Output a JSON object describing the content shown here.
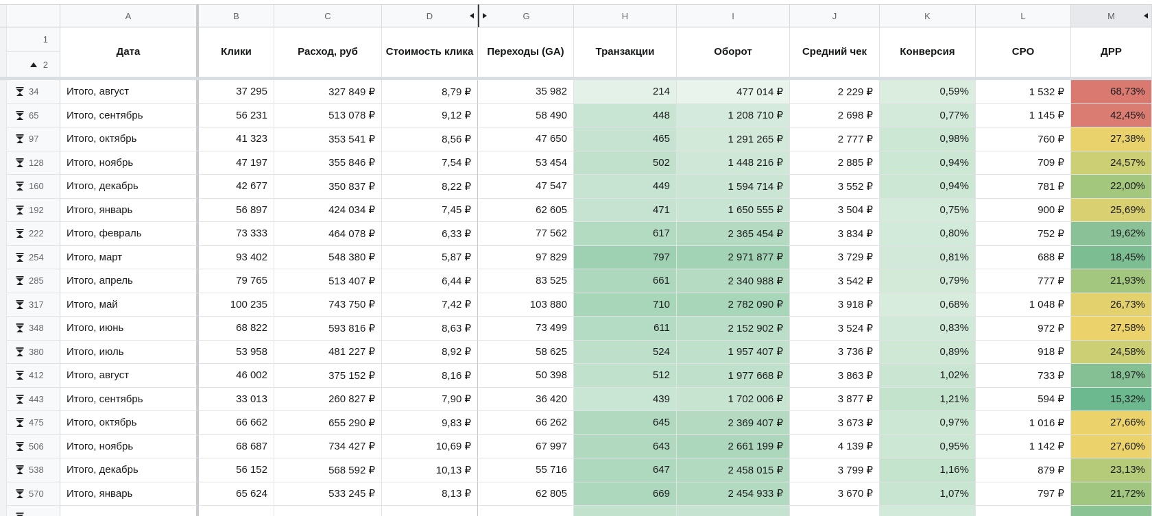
{
  "icons": {
    "row_group_collapsed": "double-triangle-collapse-icon",
    "hidden_columns_marker": "black-triangle-icon",
    "frozen_group_toggle": "up-triangle-icon"
  },
  "palette": {
    "header_bg": "#f8f9fa",
    "selected_header_bg": "#e7e9ec",
    "gridline": "#e1e2e3",
    "frozen_divider": "#c8ccd0",
    "red_scale": "#d9796f",
    "yellow_scale": "#ebd26b",
    "green_scale": "#6cb88f"
  },
  "frozen_row_numbers": [
    "1",
    "2"
  ],
  "columns": [
    {
      "letter": "A",
      "title": "Дата"
    },
    {
      "letter": "B",
      "title": "Клики"
    },
    {
      "letter": "C",
      "title": "Расход, руб"
    },
    {
      "letter": "D",
      "title": "Стоимость клика",
      "hidden_after": true
    },
    {
      "letter": "G",
      "title": "Переходы (GA)",
      "hidden_before": true
    },
    {
      "letter": "H",
      "title": "Транзакции"
    },
    {
      "letter": "I",
      "title": "Оборот"
    },
    {
      "letter": "J",
      "title": "Средний чек"
    },
    {
      "letter": "K",
      "title": "Конверсия"
    },
    {
      "letter": "L",
      "title": "CPO"
    },
    {
      "letter": "M",
      "title": "ДРР",
      "hidden_after": true,
      "selected": true
    }
  ],
  "rows": [
    {
      "num": "34",
      "a": "Итого, август",
      "b": "37 295",
      "c": "327 849 ₽",
      "d": "8,79 ₽",
      "g": "35 982",
      "h": "214",
      "i": "477 014 ₽",
      "j": "2 229 ₽",
      "k": "0,59%",
      "l": "1 532 ₽",
      "m": "68,73%",
      "bg": {
        "h": "#e4f1e8",
        "i": "#e9f4ec",
        "k": "#daeddf",
        "m": "#d9796f"
      }
    },
    {
      "num": "65",
      "a": "Итого, сентябрь",
      "b": "56 231",
      "c": "513 078 ₽",
      "d": "9,12 ₽",
      "g": "58 490",
      "h": "448",
      "i": "1 208 710 ₽",
      "j": "2 698 ₽",
      "k": "0,77%",
      "l": "1 145 ₽",
      "m": "42,45%",
      "bg": {
        "h": "#c8e4d2",
        "i": "#d4eadc",
        "k": "#d3eada",
        "m": "#da7c72"
      }
    },
    {
      "num": "97",
      "a": "Итого, октябрь",
      "b": "41 323",
      "c": "353 541 ₽",
      "d": "8,56 ₽",
      "g": "47 650",
      "h": "465",
      "i": "1 291 265 ₽",
      "j": "2 777 ₽",
      "k": "0,98%",
      "l": "760 ₽",
      "m": "27,38%",
      "bg": {
        "h": "#c5e3d0",
        "i": "#d2e9da",
        "k": "#cce7d4",
        "m": "#e9d26c"
      }
    },
    {
      "num": "128",
      "a": "Итого, ноябрь",
      "b": "47 197",
      "c": "355 846 ₽",
      "d": "7,54 ₽",
      "g": "53 454",
      "h": "502",
      "i": "1 448 216 ₽",
      "j": "2 885 ₽",
      "k": "0,94%",
      "l": "709 ₽",
      "m": "24,57%",
      "bg": {
        "h": "#c1e1cd",
        "i": "#cee7d7",
        "k": "#cde7d5",
        "m": "#cdcf74"
      }
    },
    {
      "num": "160",
      "a": "Итого, декабрь",
      "b": "42 677",
      "c": "350 837 ₽",
      "d": "8,22 ₽",
      "g": "47 547",
      "h": "449",
      "i": "1 594 714 ₽",
      "j": "3 552 ₽",
      "k": "0,94%",
      "l": "781 ₽",
      "m": "22,00%",
      "bg": {
        "h": "#c7e4d2",
        "i": "#cae5d3",
        "k": "#cde7d5",
        "m": "#a4c77e"
      }
    },
    {
      "num": "192",
      "a": "Итого, январь",
      "b": "56 897",
      "c": "424 034 ₽",
      "d": "7,45 ₽",
      "g": "62 605",
      "h": "471",
      "i": "1 650 555 ₽",
      "j": "3 504 ₽",
      "k": "0,75%",
      "l": "900 ₽",
      "m": "25,69%",
      "bg": {
        "h": "#c5e3d0",
        "i": "#c8e4d2",
        "k": "#d4eada",
        "m": "#d9d071"
      }
    },
    {
      "num": "222",
      "a": "Итого, февраль",
      "b": "73 333",
      "c": "464 078 ₽",
      "d": "6,33 ₽",
      "g": "77 562",
      "h": "617",
      "i": "2 365 454 ₽",
      "j": "3 834 ₽",
      "k": "0,80%",
      "l": "752 ₽",
      "m": "19,62%",
      "bg": {
        "h": "#b3dbc2",
        "i": "#b4dbc2",
        "k": "#d2ead9",
        "m": "#8ac196"
      }
    },
    {
      "num": "254",
      "a": "Итого, март",
      "b": "93 402",
      "c": "548 380 ₽",
      "d": "5,87 ₽",
      "g": "97 829",
      "h": "797",
      "i": "2 971 877 ₽",
      "j": "3 729 ₽",
      "k": "0,81%",
      "l": "688 ₽",
      "m": "18,45%",
      "bg": {
        "h": "#9dd1b1",
        "i": "#a3d3b5",
        "k": "#d2e9d9",
        "m": "#7dbd92"
      }
    },
    {
      "num": "285",
      "a": "Итого, апрель",
      "b": "79 765",
      "c": "513 407 ₽",
      "d": "6,44 ₽",
      "g": "83 525",
      "h": "661",
      "i": "2 340 988 ₽",
      "j": "3 542 ₽",
      "k": "0,79%",
      "l": "777 ₽",
      "m": "21,93%",
      "bg": {
        "h": "#aed8be",
        "i": "#b5dbc3",
        "k": "#d3ead9",
        "m": "#a3c77e"
      }
    },
    {
      "num": "317",
      "a": "Итого, май",
      "b": "100 235",
      "c": "743 750 ₽",
      "d": "7,42 ₽",
      "g": "103 880",
      "h": "710",
      "i": "2 782 090 ₽",
      "j": "3 918 ₽",
      "k": "0,68%",
      "l": "1 048 ₽",
      "m": "26,73%",
      "bg": {
        "h": "#a8d6b9",
        "i": "#a8d6b9",
        "k": "#d7ecdc",
        "m": "#e3d16e"
      }
    },
    {
      "num": "348",
      "a": "Итого, июнь",
      "b": "68 822",
      "c": "593 816 ₽",
      "d": "8,63 ₽",
      "g": "73 499",
      "h": "611",
      "i": "2 152 902 ₽",
      "j": "3 524 ₽",
      "k": "0,83%",
      "l": "972 ₽",
      "m": "27,58%",
      "bg": {
        "h": "#b4dbc3",
        "i": "#badec7",
        "k": "#d1e9d8",
        "m": "#ebd26b"
      }
    },
    {
      "num": "380",
      "a": "Итого, июль",
      "b": "53 958",
      "c": "481 227 ₽",
      "d": "8,92 ₽",
      "g": "58 625",
      "h": "524",
      "i": "1 957 407 ₽",
      "j": "3 736 ₽",
      "k": "0,89%",
      "l": "918 ₽",
      "m": "24,58%",
      "bg": {
        "h": "#bee0cb",
        "i": "#bfe0cb",
        "k": "#cfe8d6",
        "m": "#cdcf74"
      }
    },
    {
      "num": "412",
      "a": "Итого, август",
      "b": "46 002",
      "c": "375 152 ₽",
      "d": "8,16 ₽",
      "g": "50 398",
      "h": "512",
      "i": "1 977 668 ₽",
      "j": "3 863 ₽",
      "k": "1,02%",
      "l": "733 ₽",
      "m": "18,97%",
      "bg": {
        "h": "#c0e1cc",
        "i": "#bfe0cb",
        "k": "#cae6d3",
        "m": "#84c094"
      }
    },
    {
      "num": "443",
      "a": "Итого, сентябрь",
      "b": "33 013",
      "c": "260 827 ₽",
      "d": "7,90 ₽",
      "g": "36 420",
      "h": "439",
      "i": "1 702 006 ₽",
      "j": "3 877 ₽",
      "k": "1,21%",
      "l": "594 ₽",
      "m": "15,32%",
      "bg": {
        "h": "#c9e5d3",
        "i": "#c7e4d1",
        "k": "#c3e3cd",
        "m": "#6cb88f"
      }
    },
    {
      "num": "475",
      "a": "Итого, октябрь",
      "b": "66 662",
      "c": "655 290 ₽",
      "d": "9,83 ₽",
      "g": "66 262",
      "h": "645",
      "i": "2 369 407 ₽",
      "j": "3 673 ₽",
      "k": "0,97%",
      "l": "1 016 ₽",
      "m": "27,66%",
      "bg": {
        "h": "#b0d9bf",
        "i": "#b4dbc2",
        "k": "#cce7d4",
        "m": "#ecd26b"
      }
    },
    {
      "num": "506",
      "a": "Итого, ноябрь",
      "b": "68 687",
      "c": "734 427 ₽",
      "d": "10,69 ₽",
      "g": "67 997",
      "h": "643",
      "i": "2 661 199 ₽",
      "j": "4 139 ₽",
      "k": "0,95%",
      "l": "1 142 ₽",
      "m": "27,60%",
      "bg": {
        "h": "#b0d9bf",
        "i": "#acd7bc",
        "k": "#cde7d5",
        "m": "#ebd26b"
      }
    },
    {
      "num": "538",
      "a": "Итого, декабрь",
      "b": "56 152",
      "c": "568 592 ₽",
      "d": "10,13 ₽",
      "g": "55 716",
      "h": "647",
      "i": "2 458 015 ₽",
      "j": "3 799 ₽",
      "k": "1,16%",
      "l": "879 ₽",
      "m": "23,13%",
      "bg": {
        "h": "#afd9bf",
        "i": "#b1dac0",
        "k": "#c5e4ce",
        "m": "#b5cb7a"
      }
    },
    {
      "num": "570",
      "a": "Итого, январь",
      "b": "65 624",
      "c": "533 245 ₽",
      "d": "8,13 ₽",
      "g": "62 805",
      "h": "669",
      "i": "2 454 933 ₽",
      "j": "3 670 ₽",
      "k": "1,07%",
      "l": "797 ₽",
      "m": "21,72%",
      "bg": {
        "h": "#add8bd",
        "i": "#b1dac0",
        "k": "#c8e5d1",
        "m": "#a0c67f"
      }
    }
  ],
  "partial_row_bg": {
    "h": "#c2e2cd",
    "i": "#c6e3d1",
    "k": "#d2ead9",
    "m": "#8bc394"
  }
}
